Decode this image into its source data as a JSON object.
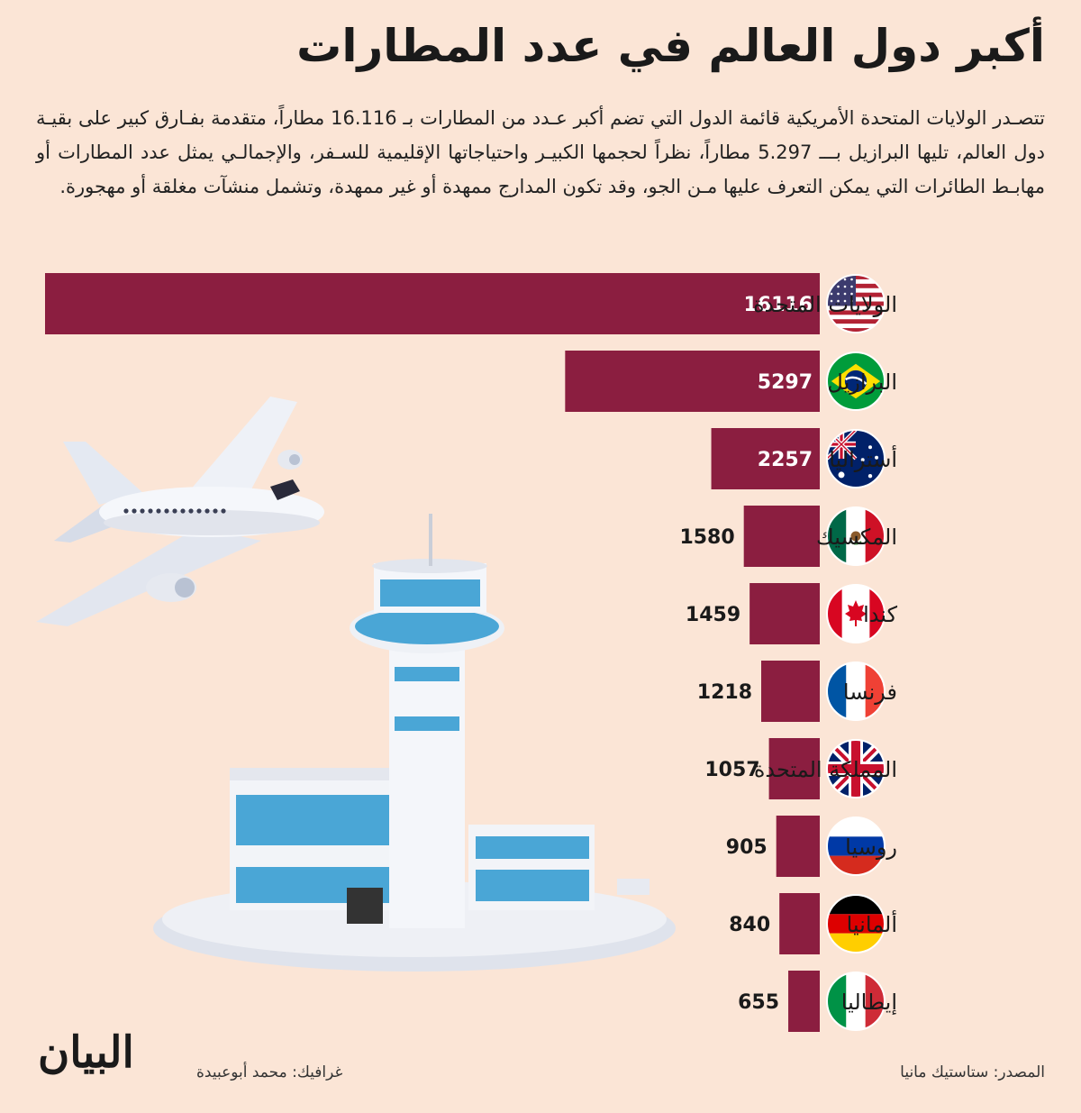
{
  "header": {
    "title": "أكبر دول العالم في عدد المطارات",
    "intro": "تتصـدر الولايات المتحدة الأمريكية قائمة الدول التي تضم أكبر عـدد من المطارات بـ 16.116 مطاراً، متقدمة بفـارق كبير على بقيـة دول العالم، تليها البرازيل بـــ 5.297 مطاراً، نظراً لحجمها الكبيـر واحتياجاتها الإقليمية للسـفر، والإجمالـي يمثل عدد المطارات أو مهابـط الطائرات التي يمكن التعرف عليها مـن الجو، وقد تكون المدارج ممهدة أو غير ممهدة، وتشمل منشآت مغلقة أو مهجورة."
  },
  "chart_data": {
    "type": "bar",
    "orientation": "horizontal",
    "categories": [
      "الولايات المتحدة",
      "البرازيل",
      "أستراليا",
      "المكسيك",
      "كندا",
      "فرنسا",
      "المملكة المتحدة",
      "روسيا",
      "ألمانيا",
      "إيطاليا"
    ],
    "values": [
      16116,
      5297,
      2257,
      1580,
      1459,
      1218,
      1057,
      905,
      840,
      655
    ],
    "value_labels": [
      "16116",
      "5297",
      "2257",
      "1580",
      "1459",
      "1218",
      "1057",
      "905",
      "840",
      "655"
    ],
    "flags": [
      "usa-flag-icon",
      "brazil-flag-icon",
      "australia-flag-icon",
      "mexico-flag-icon",
      "canada-flag-icon",
      "france-flag-icon",
      "uk-flag-icon",
      "russia-flag-icon",
      "germany-flag-icon",
      "italy-flag-icon"
    ],
    "bar_color": "#8b1e40",
    "grid": false,
    "legend": "none"
  },
  "footer": {
    "source": "المصدر: ستاستيك مانيا",
    "credit": "غرافيك: محمد أبوعبيدة",
    "logo": "البيان"
  },
  "illustration": [
    "airplane-illustration",
    "airport-tower-illustration"
  ]
}
